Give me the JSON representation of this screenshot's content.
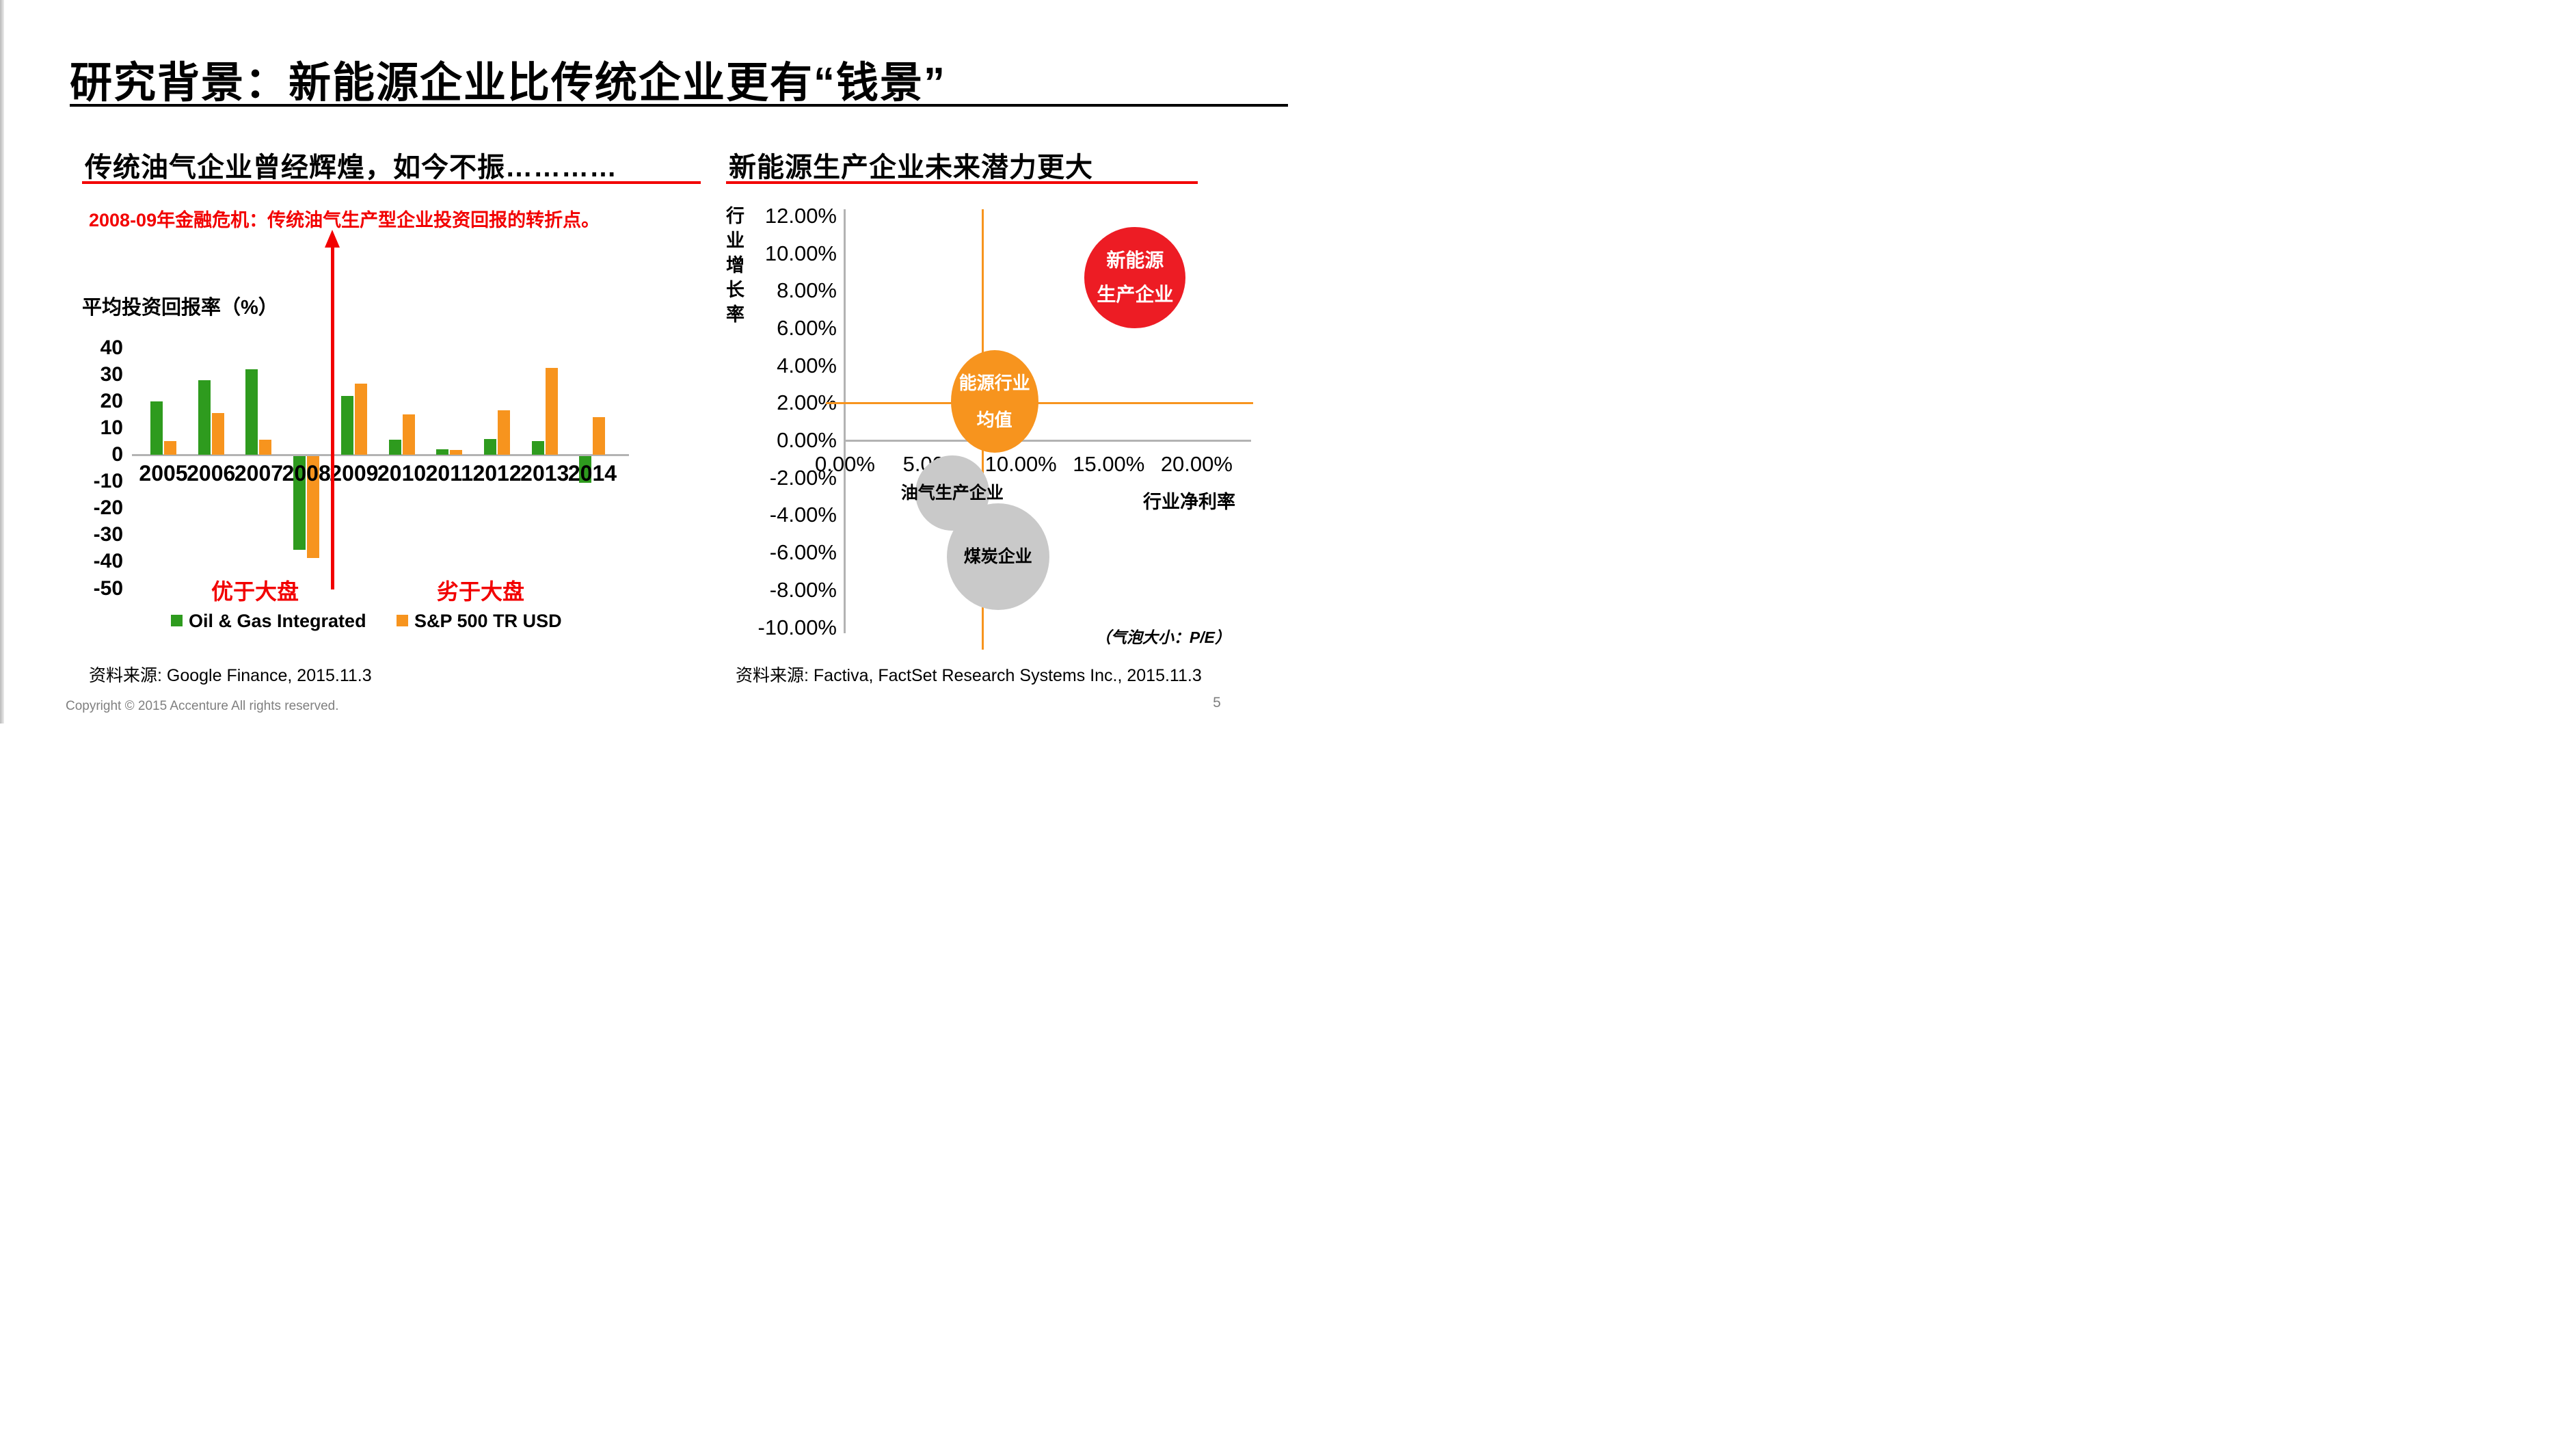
{
  "theme": {
    "accent_red": "#f20000",
    "axis_gray": "#b3b3b3",
    "footer_gray": "#7f7f7f"
  },
  "title": "研究背景：新能源企业比传统企业更有“钱景”",
  "footer": {
    "copyright": "Copyright © 2015 Accenture  All rights reserved.",
    "page_number": "5"
  },
  "left_section": {
    "subtitle": "传统油气企业曾经辉煌，如今不振…………",
    "annotation": "2008-09年金融危机：传统油气生产型企业投资回报的转折点。",
    "axis_unit_label": "平均投资回报率（%）",
    "zone_labels": {
      "left": "优于大盘",
      "right": "劣于大盘"
    },
    "source": "资料来源: Google Finance, 2015.11.3",
    "chart_data": {
      "type": "bar",
      "title": "平均投资回报率（%）",
      "categories": [
        "2005",
        "2006",
        "2007",
        "2008",
        "2009",
        "2010",
        "2011",
        "2012",
        "2013",
        "2014"
      ],
      "series": [
        {
          "name": "Oil & Gas Integrated",
          "color": "#2e9b1e",
          "values": [
            20,
            28,
            32,
            -35,
            22,
            5.5,
            2,
            6,
            5,
            -10
          ]
        },
        {
          "name": "S&P 500 TR USD",
          "color": "#f7941e",
          "values": [
            5,
            15.5,
            5.5,
            -38,
            26.5,
            15,
            1.8,
            16.5,
            32.5,
            14
          ]
        }
      ],
      "ylim": [
        -50,
        40
      ],
      "ytick_step": 10,
      "grid": false,
      "legend_position": "bottom",
      "annotation_line": "vertical red arrow between 2008 and 2009"
    }
  },
  "right_section": {
    "subtitle": "新能源生产企业未来潜力更大",
    "ylabel": "行业增长率",
    "xlabel": "行业净利率",
    "bubble_note": "（气泡大小：P/E）",
    "source": "资料来源: Factiva, FactSet Research Systems Inc., 2015.11.3",
    "chart_data": {
      "type": "bubble",
      "xlabel": "行业净利率",
      "ylabel": "行业增长率",
      "xlim": [
        0,
        20
      ],
      "ylim": [
        -10,
        12
      ],
      "xtick_step": 5,
      "ytick_step": 2,
      "xticks": [
        "0.00%",
        "5.00%",
        "10.00%",
        "15.00%",
        "20.00%"
      ],
      "yticks": [
        "12.00%",
        "10.00%",
        "8.00%",
        "6.00%",
        "4.00%",
        "2.00%",
        "0.00%",
        "-2.00%",
        "-4.00%",
        "-6.00%",
        "-8.00%",
        "-10.00%"
      ],
      "reference_lines": {
        "x": 7.8,
        "y": 2.0,
        "color": "#f7941e"
      },
      "points": [
        {
          "id": "new-energy-producers",
          "label": "新能源生产企业",
          "lines": [
            "新能源",
            "生产企业"
          ],
          "x": 16.5,
          "y": 8.7,
          "rx": 74,
          "ry": 74,
          "color": "#ed1c24",
          "text_color": "#ffffff"
        },
        {
          "id": "energy-industry-average",
          "label": "能源行业均值",
          "lines": [
            "能源行业",
            "均值"
          ],
          "x": 8.5,
          "y": 2.1,
          "rx": 64,
          "ry": 75,
          "color": "#f7941e",
          "text_color": "#ffffff"
        },
        {
          "id": "coal-companies",
          "label": "煤炭企业",
          "lines": [
            "煤炭企业"
          ],
          "x": 8.7,
          "y": -6.2,
          "rx": 75,
          "ry": 78,
          "color": "#c9c9c9",
          "text_color": "#000000"
        },
        {
          "id": "oil-gas-producers",
          "label": "油气生产企业",
          "lines": [
            "油气生产企业"
          ],
          "x": 6.1,
          "y": -2.8,
          "rx": 54,
          "ry": 55,
          "color": "#c9c9c9",
          "text_color": "#000000"
        }
      ]
    }
  }
}
